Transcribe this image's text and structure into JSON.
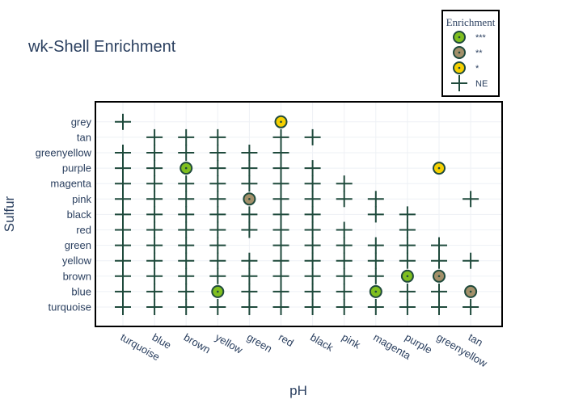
{
  "chart_data": {
    "type": "scatter",
    "title": "wk-Shell Enrichment",
    "xlabel": "pH",
    "ylabel": "Sulfur",
    "x_categories": [
      "turquoise",
      "blue",
      "brown",
      "yellow",
      "green",
      "red",
      "black",
      "pink",
      "magenta",
      "purple",
      "greenyellow",
      "tan"
    ],
    "y_categories": [
      "turquoise",
      "blue",
      "brown",
      "yellow",
      "green",
      "red",
      "black",
      "pink",
      "magenta",
      "purple",
      "greenyellow",
      "tan",
      "grey"
    ],
    "legend": {
      "title": "Enrichment",
      "placement": "top-right",
      "entries": [
        {
          "label": "***",
          "symbol": "circle",
          "fill": "#7fbf1f"
        },
        {
          "label": "**",
          "symbol": "circle",
          "fill": "#a3906a"
        },
        {
          "label": "*",
          "symbol": "circle",
          "fill": "#f5d000"
        },
        {
          "label": "NE",
          "symbol": "cross"
        }
      ]
    },
    "colors": {
      "cross": "#1f4a3c",
      "marker_border": "#1f4a3c",
      "***": "#7fbf1f",
      "**": "#a3906a",
      "*": "#f5d000"
    },
    "points": [
      {
        "x": "turquoise",
        "y": "grey",
        "level": "NE"
      },
      {
        "x": "turquoise",
        "y": "greenyellow",
        "level": "NE"
      },
      {
        "x": "turquoise",
        "y": "purple",
        "level": "NE"
      },
      {
        "x": "turquoise",
        "y": "magenta",
        "level": "NE"
      },
      {
        "x": "turquoise",
        "y": "pink",
        "level": "NE"
      },
      {
        "x": "turquoise",
        "y": "black",
        "level": "NE"
      },
      {
        "x": "turquoise",
        "y": "red",
        "level": "NE"
      },
      {
        "x": "turquoise",
        "y": "green",
        "level": "NE"
      },
      {
        "x": "turquoise",
        "y": "yellow",
        "level": "NE"
      },
      {
        "x": "turquoise",
        "y": "brown",
        "level": "NE"
      },
      {
        "x": "turquoise",
        "y": "blue",
        "level": "NE"
      },
      {
        "x": "turquoise",
        "y": "turquoise",
        "level": "NE"
      },
      {
        "x": "blue",
        "y": "tan",
        "level": "NE"
      },
      {
        "x": "blue",
        "y": "greenyellow",
        "level": "NE"
      },
      {
        "x": "blue",
        "y": "purple",
        "level": "NE"
      },
      {
        "x": "blue",
        "y": "magenta",
        "level": "NE"
      },
      {
        "x": "blue",
        "y": "pink",
        "level": "NE"
      },
      {
        "x": "blue",
        "y": "black",
        "level": "NE"
      },
      {
        "x": "blue",
        "y": "red",
        "level": "NE"
      },
      {
        "x": "blue",
        "y": "green",
        "level": "NE"
      },
      {
        "x": "blue",
        "y": "yellow",
        "level": "NE"
      },
      {
        "x": "blue",
        "y": "brown",
        "level": "NE"
      },
      {
        "x": "blue",
        "y": "blue",
        "level": "NE"
      },
      {
        "x": "blue",
        "y": "turquoise",
        "level": "NE"
      },
      {
        "x": "brown",
        "y": "tan",
        "level": "NE"
      },
      {
        "x": "brown",
        "y": "greenyellow",
        "level": "NE"
      },
      {
        "x": "brown",
        "y": "purple",
        "level": "***"
      },
      {
        "x": "brown",
        "y": "magenta",
        "level": "NE"
      },
      {
        "x": "brown",
        "y": "pink",
        "level": "NE"
      },
      {
        "x": "brown",
        "y": "black",
        "level": "NE"
      },
      {
        "x": "brown",
        "y": "red",
        "level": "NE"
      },
      {
        "x": "brown",
        "y": "green",
        "level": "NE"
      },
      {
        "x": "brown",
        "y": "yellow",
        "level": "NE"
      },
      {
        "x": "brown",
        "y": "brown",
        "level": "NE"
      },
      {
        "x": "brown",
        "y": "blue",
        "level": "NE"
      },
      {
        "x": "brown",
        "y": "turquoise",
        "level": "NE"
      },
      {
        "x": "yellow",
        "y": "tan",
        "level": "NE"
      },
      {
        "x": "yellow",
        "y": "greenyellow",
        "level": "NE"
      },
      {
        "x": "yellow",
        "y": "purple",
        "level": "NE"
      },
      {
        "x": "yellow",
        "y": "magenta",
        "level": "NE"
      },
      {
        "x": "yellow",
        "y": "pink",
        "level": "NE"
      },
      {
        "x": "yellow",
        "y": "black",
        "level": "NE"
      },
      {
        "x": "yellow",
        "y": "red",
        "level": "NE"
      },
      {
        "x": "yellow",
        "y": "green",
        "level": "NE"
      },
      {
        "x": "yellow",
        "y": "yellow",
        "level": "NE"
      },
      {
        "x": "yellow",
        "y": "brown",
        "level": "NE"
      },
      {
        "x": "yellow",
        "y": "blue",
        "level": "***"
      },
      {
        "x": "yellow",
        "y": "turquoise",
        "level": "NE"
      },
      {
        "x": "green",
        "y": "greenyellow",
        "level": "NE"
      },
      {
        "x": "green",
        "y": "purple",
        "level": "NE"
      },
      {
        "x": "green",
        "y": "magenta",
        "level": "NE"
      },
      {
        "x": "green",
        "y": "pink",
        "level": "**"
      },
      {
        "x": "green",
        "y": "black",
        "level": "NE"
      },
      {
        "x": "green",
        "y": "red",
        "level": "NE"
      },
      {
        "x": "green",
        "y": "yellow",
        "level": "NE"
      },
      {
        "x": "green",
        "y": "brown",
        "level": "NE"
      },
      {
        "x": "green",
        "y": "blue",
        "level": "NE"
      },
      {
        "x": "green",
        "y": "turquoise",
        "level": "NE"
      },
      {
        "x": "red",
        "y": "grey",
        "level": "*"
      },
      {
        "x": "red",
        "y": "tan",
        "level": "NE"
      },
      {
        "x": "red",
        "y": "greenyellow",
        "level": "NE"
      },
      {
        "x": "red",
        "y": "purple",
        "level": "NE"
      },
      {
        "x": "red",
        "y": "magenta",
        "level": "NE"
      },
      {
        "x": "red",
        "y": "pink",
        "level": "NE"
      },
      {
        "x": "red",
        "y": "black",
        "level": "NE"
      },
      {
        "x": "red",
        "y": "red",
        "level": "NE"
      },
      {
        "x": "red",
        "y": "green",
        "level": "NE"
      },
      {
        "x": "red",
        "y": "yellow",
        "level": "NE"
      },
      {
        "x": "red",
        "y": "brown",
        "level": "NE"
      },
      {
        "x": "red",
        "y": "blue",
        "level": "NE"
      },
      {
        "x": "red",
        "y": "turquoise",
        "level": "NE"
      },
      {
        "x": "black",
        "y": "tan",
        "level": "NE"
      },
      {
        "x": "black",
        "y": "purple",
        "level": "NE"
      },
      {
        "x": "black",
        "y": "magenta",
        "level": "NE"
      },
      {
        "x": "black",
        "y": "pink",
        "level": "NE"
      },
      {
        "x": "black",
        "y": "black",
        "level": "NE"
      },
      {
        "x": "black",
        "y": "red",
        "level": "NE"
      },
      {
        "x": "black",
        "y": "green",
        "level": "NE"
      },
      {
        "x": "black",
        "y": "yellow",
        "level": "NE"
      },
      {
        "x": "black",
        "y": "brown",
        "level": "NE"
      },
      {
        "x": "black",
        "y": "blue",
        "level": "NE"
      },
      {
        "x": "black",
        "y": "turquoise",
        "level": "NE"
      },
      {
        "x": "pink",
        "y": "magenta",
        "level": "NE"
      },
      {
        "x": "pink",
        "y": "pink",
        "level": "NE"
      },
      {
        "x": "pink",
        "y": "red",
        "level": "NE"
      },
      {
        "x": "pink",
        "y": "green",
        "level": "NE"
      },
      {
        "x": "pink",
        "y": "yellow",
        "level": "NE"
      },
      {
        "x": "pink",
        "y": "brown",
        "level": "NE"
      },
      {
        "x": "pink",
        "y": "blue",
        "level": "NE"
      },
      {
        "x": "pink",
        "y": "turquoise",
        "level": "NE"
      },
      {
        "x": "magenta",
        "y": "pink",
        "level": "NE"
      },
      {
        "x": "magenta",
        "y": "black",
        "level": "NE"
      },
      {
        "x": "magenta",
        "y": "green",
        "level": "NE"
      },
      {
        "x": "magenta",
        "y": "yellow",
        "level": "NE"
      },
      {
        "x": "magenta",
        "y": "brown",
        "level": "NE"
      },
      {
        "x": "magenta",
        "y": "blue",
        "level": "***"
      },
      {
        "x": "magenta",
        "y": "turquoise",
        "level": "NE"
      },
      {
        "x": "purple",
        "y": "black",
        "level": "NE"
      },
      {
        "x": "purple",
        "y": "red",
        "level": "NE"
      },
      {
        "x": "purple",
        "y": "green",
        "level": "NE"
      },
      {
        "x": "purple",
        "y": "yellow",
        "level": "NE"
      },
      {
        "x": "purple",
        "y": "brown",
        "level": "***"
      },
      {
        "x": "purple",
        "y": "blue",
        "level": "NE"
      },
      {
        "x": "purple",
        "y": "turquoise",
        "level": "NE"
      },
      {
        "x": "greenyellow",
        "y": "purple",
        "level": "*"
      },
      {
        "x": "greenyellow",
        "y": "green",
        "level": "NE"
      },
      {
        "x": "greenyellow",
        "y": "yellow",
        "level": "NE"
      },
      {
        "x": "greenyellow",
        "y": "brown",
        "level": "**"
      },
      {
        "x": "greenyellow",
        "y": "blue",
        "level": "NE"
      },
      {
        "x": "greenyellow",
        "y": "turquoise",
        "level": "NE"
      },
      {
        "x": "tan",
        "y": "pink",
        "level": "NE"
      },
      {
        "x": "tan",
        "y": "yellow",
        "level": "NE"
      },
      {
        "x": "tan",
        "y": "blue",
        "level": "**"
      },
      {
        "x": "tan",
        "y": "turquoise",
        "level": "NE"
      }
    ]
  }
}
